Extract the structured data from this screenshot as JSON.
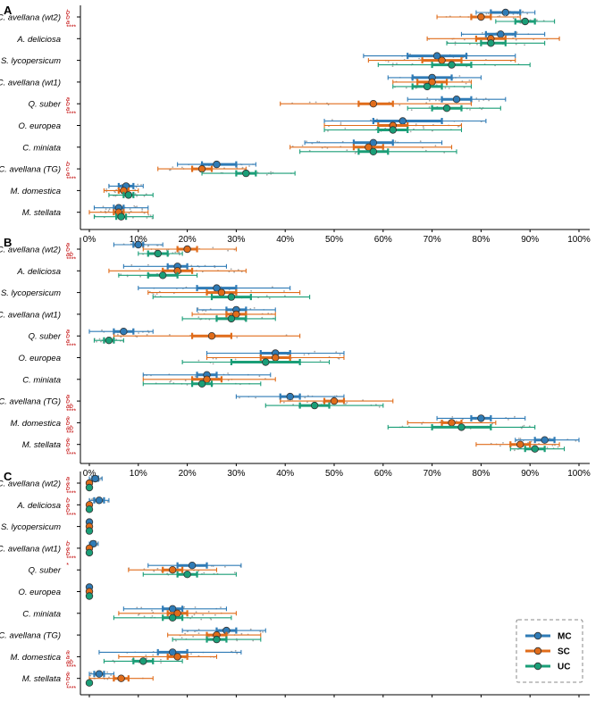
{
  "chart_data": {
    "type": "scatter",
    "description_free": true,
    "legend": {
      "position": "bottom-right",
      "entries": [
        {
          "name": "MC",
          "color": "#2f7bb6"
        },
        {
          "name": "SC",
          "color": "#e06c1a"
        },
        {
          "name": "UC",
          "color": "#1a9e77"
        }
      ]
    },
    "xaxis": {
      "range": [
        0,
        100
      ],
      "ticks": [
        0,
        10,
        20,
        30,
        40,
        50,
        60,
        70,
        80,
        90,
        100
      ],
      "tick_labels": [
        "0%",
        "10%",
        "20%",
        "30%",
        "40%",
        "50%",
        "60%",
        "70%",
        "80%",
        "90%",
        "100%"
      ]
    },
    "categories": [
      "C. avellana (wt2)",
      "A. deliciosa",
      "S. lycopersicum",
      "C. avellana (wt1)",
      "Q. suber",
      "O. europea",
      "C. miniata",
      "C. avellana (TG)",
      "M. domestica",
      "M. stellata"
    ],
    "series_order": [
      "MC",
      "SC",
      "UC"
    ],
    "panels": [
      {
        "label": "A",
        "sig": [
          [
            "b",
            "b",
            "a",
            "****"
          ],
          [],
          [],
          [],
          [
            "a",
            "b",
            "a",
            "****"
          ],
          [],
          [],
          [
            "b",
            "c",
            "a",
            "****"
          ],
          [],
          []
        ],
        "rows": [
          {
            "MC": [
              85,
              82,
              88,
              79,
              91
            ],
            "SC": [
              80,
              78,
              82,
              71,
              88
            ],
            "UC": [
              89,
              87,
              91,
              83,
              95
            ]
          },
          {
            "MC": [
              84,
              81,
              87,
              76,
              93
            ],
            "SC": [
              82,
              79,
              85,
              69,
              96
            ],
            "UC": [
              82,
              80,
              85,
              73,
              93
            ]
          },
          {
            "MC": [
              71,
              65,
              77,
              56,
              87
            ],
            "SC": [
              72,
              68,
              76,
              57,
              87
            ],
            "UC": [
              74,
              70,
              78,
              59,
              90
            ]
          },
          {
            "MC": [
              70,
              66,
              74,
              61,
              80
            ],
            "SC": [
              70,
              67,
              73,
              62,
              78
            ],
            "UC": [
              69,
              66,
              72,
              62,
              78
            ]
          },
          {
            "MC": [
              75,
              72,
              78,
              65,
              85
            ],
            "SC": [
              58,
              55,
              62,
              39,
              78
            ],
            "UC": [
              73,
              70,
              76,
              65,
              84
            ]
          },
          {
            "MC": [
              64,
              58,
              72,
              48,
              81
            ],
            "SC": [
              62,
              59,
              65,
              48,
              76
            ],
            "UC": [
              62,
              59,
              65,
              48,
              76
            ]
          },
          {
            "MC": [
              58,
              54,
              62,
              44,
              72
            ],
            "SC": [
              57,
              54,
              60,
              41,
              74
            ],
            "UC": [
              58,
              55,
              61,
              43,
              75
            ]
          },
          {
            "MC": [
              26,
              23,
              30,
              18,
              34
            ],
            "SC": [
              23,
              21,
              25,
              14,
              32
            ],
            "UC": [
              32,
              30,
              34,
              23,
              42
            ]
          },
          {
            "MC": [
              7.5,
              6,
              9,
              4,
              11
            ],
            "SC": [
              7,
              6,
              8,
              3,
              10
            ],
            "UC": [
              8,
              7,
              9,
              4,
              13
            ]
          },
          {
            "MC": [
              6,
              5,
              7,
              1,
              12
            ],
            "SC": [
              6,
              5,
              7,
              0,
              12
            ],
            "UC": [
              6.5,
              5.5,
              7.5,
              1,
              13
            ]
          }
        ]
      },
      {
        "label": "B",
        "sig": [
          [
            "a",
            "b",
            "ab",
            "****"
          ],
          [],
          [],
          [],
          [
            "a",
            "b",
            "a",
            "****"
          ],
          [],
          [],
          [
            "a",
            "b",
            "ab",
            "****"
          ],
          [
            "a",
            "b",
            "ab",
            "***"
          ],
          [
            "a",
            "b",
            "a",
            "****"
          ]
        ],
        "rows": [
          {
            "MC": [
              10,
              9,
              11,
              5,
              15
            ],
            "SC": [
              20,
              18,
              22,
              11,
              30
            ],
            "UC": [
              14,
              12,
              16,
              10,
              19
            ]
          },
          {
            "MC": [
              18,
              16,
              20,
              7,
              28
            ],
            "SC": [
              18,
              15,
              21,
              4,
              32
            ],
            "UC": [
              15,
              12,
              18,
              6,
              22
            ]
          },
          {
            "MC": [
              26,
              22,
              30,
              10,
              41
            ],
            "SC": [
              27,
              24,
              30,
              12,
              43
            ],
            "UC": [
              29,
              25,
              33,
              13,
              45
            ]
          },
          {
            "MC": [
              30,
              28,
              32,
              22,
              38
            ],
            "SC": [
              30,
              28,
              32,
              21,
              38
            ],
            "UC": [
              29,
              26,
              32,
              19,
              38
            ]
          },
          {
            "MC": [
              7,
              5,
              9,
              0,
              13
            ],
            "SC": [
              25,
              21,
              29,
              5,
              43
            ],
            "UC": [
              4,
              3,
              5,
              1,
              7
            ]
          },
          {
            "MC": [
              38,
              35,
              41,
              24,
              52
            ],
            "SC": [
              38,
              35,
              41,
              24,
              52
            ],
            "UC": [
              36,
              29,
              43,
              19,
              49
            ]
          },
          {
            "MC": [
              24,
              22,
              26,
              11,
              37
            ],
            "SC": [
              24,
              21,
              27,
              11,
              38
            ],
            "UC": [
              23,
              21,
              25,
              11,
              35
            ]
          },
          {
            "MC": [
              41,
              39,
              43,
              30,
              52
            ],
            "SC": [
              50,
              48,
              52,
              39,
              62
            ],
            "UC": [
              46,
              43,
              49,
              36,
              60
            ]
          },
          {
            "MC": [
              80,
              78,
              82,
              71,
              89
            ],
            "SC": [
              74,
              72,
              76,
              65,
              83
            ],
            "UC": [
              76,
              70,
              82,
              61,
              91
            ]
          },
          {
            "MC": [
              93,
              91,
              95,
              87,
              100
            ],
            "SC": [
              88,
              86,
              90,
              79,
              96
            ],
            "UC": [
              91,
              89,
              93,
              86,
              97
            ]
          }
        ]
      },
      {
        "label": "C",
        "sig": [
          [
            "a",
            "a",
            "b",
            "****"
          ],
          [
            "b",
            "a",
            "b",
            "****"
          ],
          [],
          [
            "b",
            "a",
            "b",
            "****"
          ],
          [
            "*"
          ],
          [],
          [],
          [],
          [
            "a",
            "a",
            "ab",
            "****"
          ],
          [
            "a",
            "b",
            "c",
            "****"
          ]
        ],
        "rows": [
          {
            "MC": [
              1.2,
              0.6,
              1.8,
              0,
              2.6
            ],
            "SC": [
              0,
              0,
              0,
              0,
              0
            ],
            "UC": [
              0,
              0,
              0,
              0,
              0
            ]
          },
          {
            "MC": [
              2,
              1,
              3,
              0,
              4
            ],
            "SC": [
              0,
              0,
              0,
              0,
              0
            ],
            "UC": [
              0,
              0,
              0,
              0,
              0
            ]
          },
          {
            "MC": [
              0,
              0,
              0,
              0,
              0
            ],
            "SC": [
              0,
              0,
              0,
              0,
              0
            ],
            "UC": [
              0,
              0,
              0,
              0,
              0
            ]
          },
          {
            "MC": [
              0.8,
              0.4,
              1.2,
              0,
              1.8
            ],
            "SC": [
              0,
              0,
              0,
              0,
              0
            ],
            "UC": [
              0,
              0,
              0,
              0,
              0
            ]
          },
          {
            "MC": [
              21,
              18,
              24,
              12,
              31
            ],
            "SC": [
              17,
              15,
              19,
              8,
              26
            ],
            "UC": [
              20,
              18,
              22,
              11,
              30
            ]
          },
          {
            "MC": [
              0,
              0,
              0,
              0,
              0
            ],
            "SC": [
              0,
              0,
              0,
              0,
              0
            ],
            "UC": [
              0,
              0,
              0,
              0,
              0
            ]
          },
          {
            "MC": [
              17,
              15,
              19,
              7,
              28
            ],
            "SC": [
              18,
              16,
              20,
              6,
              30
            ],
            "UC": [
              17,
              15,
              19,
              5,
              29
            ]
          },
          {
            "MC": [
              28,
              26,
              30,
              19,
              36
            ],
            "SC": [
              26,
              24,
              28,
              16,
              35
            ],
            "UC": [
              26,
              24,
              28,
              17,
              35
            ]
          },
          {
            "MC": [
              17,
              14,
              20,
              2,
              31
            ],
            "SC": [
              18,
              16,
              20,
              6,
              26
            ],
            "UC": [
              11,
              9,
              13,
              3,
              19
            ]
          },
          {
            "MC": [
              2,
              1,
              3,
              0,
              5
            ],
            "SC": [
              6.5,
              5,
              8,
              0,
              13
            ],
            "UC": [
              0,
              0,
              0,
              0,
              0
            ]
          }
        ]
      }
    ]
  }
}
